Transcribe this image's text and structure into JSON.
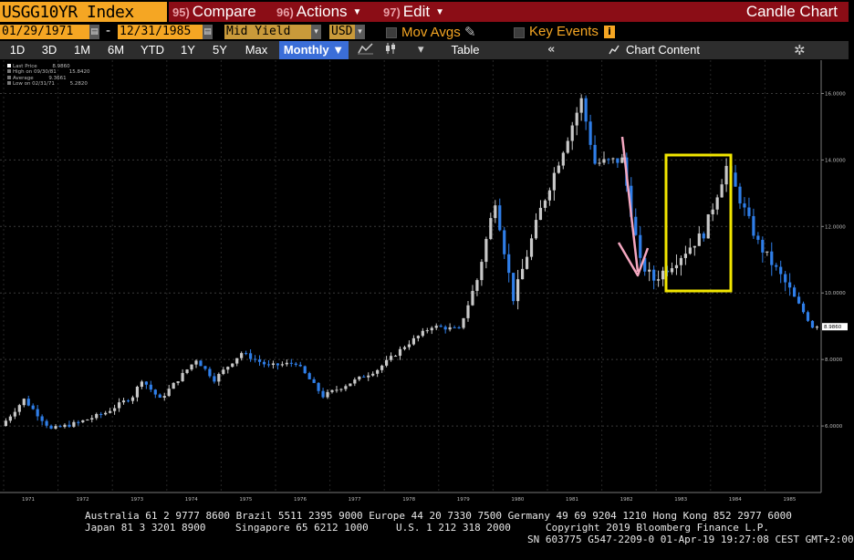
{
  "toolbar": {
    "ticker": "USGG10YR Index",
    "compare": {
      "num": "95)",
      "label": "Compare"
    },
    "actions": {
      "num": "96)",
      "label": "Actions"
    },
    "edit": {
      "num": "97)",
      "label": "Edit"
    },
    "title": "Candle Chart"
  },
  "params": {
    "start_date": "01/29/1971",
    "dash": "-",
    "end_date": "12/31/1985",
    "field": "Mid Yield",
    "currency": "USD",
    "mov_avgs": "Mov Avgs",
    "key_events": "Key Events"
  },
  "periods": {
    "items": [
      "1D",
      "3D",
      "1M",
      "6M",
      "YTD",
      "1Y",
      "5Y",
      "Max"
    ],
    "selected": "Monthly",
    "table": "Table",
    "chart_content": "Chart Content"
  },
  "legend": {
    "rows": [
      {
        "label": "Last Price",
        "value": "8.9860"
      },
      {
        "label": "High on 09/30/81",
        "value": "15.8420"
      },
      {
        "label": "Average",
        "value": "9.3661"
      },
      {
        "label": "Low on 02/31/71",
        "value": "5.2820"
      }
    ]
  },
  "colors": {
    "up": "#c8c8c8",
    "down": "#2f7ee8",
    "yellow_box": "#f2e600",
    "arrow": "#f4a7c0",
    "accent": "#f5a623"
  },
  "chart_data": {
    "type": "candlestick",
    "frequency": "Monthly",
    "x": [
      "1971",
      "1972",
      "1973",
      "1974",
      "1975",
      "1976",
      "1977",
      "1978",
      "1979",
      "1980",
      "1981",
      "1982",
      "1983",
      "1984",
      "1985"
    ],
    "y_ticks": [
      "16.0000",
      "14.0000",
      "12.0000",
      "10.0000",
      "8.0000",
      "6.0000"
    ],
    "ylim": [
      4.0,
      17.0
    ],
    "last_price_label": "8.9860",
    "approx_closes": [
      {
        "x": "1971-01",
        "y": 6.0
      },
      {
        "x": "1971-06",
        "y": 6.8
      },
      {
        "x": "1971-12",
        "y": 5.9
      },
      {
        "x": "1972-06",
        "y": 6.1
      },
      {
        "x": "1972-12",
        "y": 6.4
      },
      {
        "x": "1973-06",
        "y": 6.9
      },
      {
        "x": "1973-08",
        "y": 7.4
      },
      {
        "x": "1973-12",
        "y": 6.8
      },
      {
        "x": "1974-08",
        "y": 8.0
      },
      {
        "x": "1974-12",
        "y": 7.4
      },
      {
        "x": "1975-06",
        "y": 8.2
      },
      {
        "x": "1975-12",
        "y": 7.8
      },
      {
        "x": "1976-06",
        "y": 7.9
      },
      {
        "x": "1976-12",
        "y": 6.9
      },
      {
        "x": "1977-06",
        "y": 7.3
      },
      {
        "x": "1977-12",
        "y": 7.7
      },
      {
        "x": "1978-06",
        "y": 8.4
      },
      {
        "x": "1978-12",
        "y": 9.0
      },
      {
        "x": "1979-06",
        "y": 8.9
      },
      {
        "x": "1979-10",
        "y": 10.4
      },
      {
        "x": "1980-02",
        "y": 12.8
      },
      {
        "x": "1980-06",
        "y": 9.8
      },
      {
        "x": "1980-12",
        "y": 12.5
      },
      {
        "x": "1981-09",
        "y": 15.8
      },
      {
        "x": "1981-12",
        "y": 13.9
      },
      {
        "x": "1982-06",
        "y": 14.0
      },
      {
        "x": "1982-10",
        "y": 10.9
      },
      {
        "x": "1983-01",
        "y": 10.4
      },
      {
        "x": "1983-06",
        "y": 11.0
      },
      {
        "x": "1983-12",
        "y": 11.8
      },
      {
        "x": "1984-05",
        "y": 13.8
      },
      {
        "x": "1984-12",
        "y": 11.5
      },
      {
        "x": "1985-06",
        "y": 10.3
      },
      {
        "x": "1985-12",
        "y": 8.99
      }
    ]
  },
  "footer": {
    "line1": "Australia 61 2 9777 8600 Brazil 5511 2395 9000 Europe 44 20 7330 7500 Germany 49 69 9204 1210 Hong Kong 852 2977 6000",
    "line2_left": "Japan 81 3 3201 8900",
    "line2_mid": "Singapore 65 6212 1000",
    "line2_mid2": "U.S. 1 212 318 2000",
    "line2_right": "Copyright 2019 Bloomberg Finance L.P.",
    "line3": "SN 603775 G547-2209-0 01-Apr-19 19:27:08 CEST GMT+2:00"
  }
}
